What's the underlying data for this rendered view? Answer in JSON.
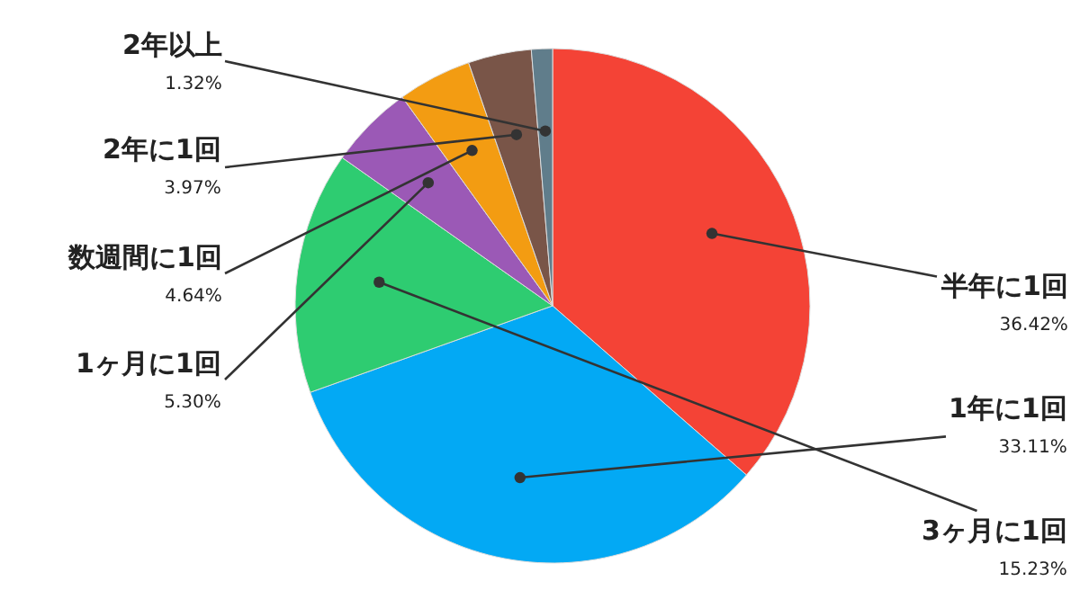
{
  "chart_data": {
    "type": "pie",
    "categories": [
      "半年に1回",
      "1年に1回",
      "3ヶ月に1回",
      "1ヶ月に1回",
      "数週間に1回",
      "2年に1回",
      "2年以上"
    ],
    "values": [
      36.42,
      33.11,
      15.23,
      5.3,
      4.64,
      3.97,
      1.32
    ],
    "colors": [
      "#f44336",
      "#03a9f4",
      "#2ecc71",
      "#9b59b6",
      "#f39c12",
      "#795548",
      "#607d8b"
    ],
    "value_labels": [
      "36.42%",
      "33.11%",
      "15.23%",
      "5.30%",
      "4.64%",
      "3.97%",
      "1.32%"
    ],
    "legend": false
  }
}
